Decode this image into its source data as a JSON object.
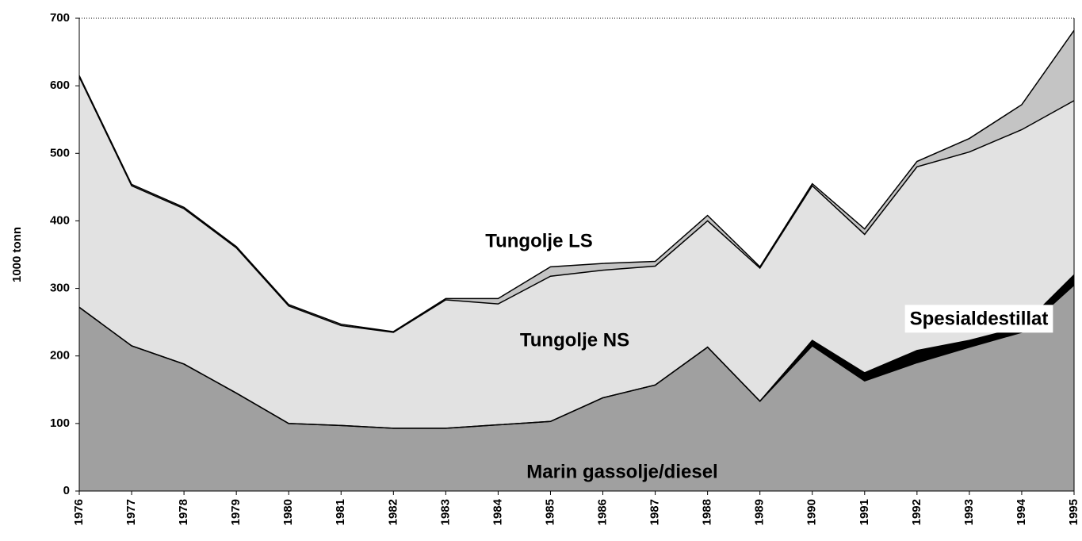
{
  "chart_data": {
    "type": "stacked-area",
    "y_label": "1000 tonn",
    "categories": [
      "1976",
      "1977",
      "1978",
      "1979",
      "1980",
      "1981",
      "1982",
      "1983",
      "1984",
      "1985",
      "1986",
      "1987",
      "1988",
      "1989",
      "1990",
      "1991",
      "1992",
      "1993",
      "1994",
      "1995"
    ],
    "series": [
      {
        "name": "Marin gassolje/diesel",
        "color": "#a0a0a0",
        "values": [
          272,
          215,
          188,
          145,
          100,
          97,
          93,
          93,
          98,
          103,
          138,
          157,
          213,
          133,
          215,
          163,
          190,
          213,
          235,
          305
        ]
      },
      {
        "name": "Spesialdestillat",
        "color": "#000000",
        "values": [
          0,
          0,
          0,
          0,
          0,
          0,
          0,
          0,
          0,
          0,
          0,
          0,
          0,
          0,
          8,
          12,
          18,
          10,
          8,
          15
        ]
      },
      {
        "name": "Tungolje NS",
        "color": "#e2e2e2",
        "values": [
          341,
          237,
          230,
          215,
          174,
          148,
          142,
          190,
          179,
          215,
          189,
          176,
          187,
          197,
          229,
          205,
          272,
          279,
          292,
          258
        ]
      },
      {
        "name": "Tungolje LS",
        "color": "#c4c4c4",
        "values": [
          2,
          2,
          2,
          2,
          2,
          2,
          1,
          2,
          8,
          14,
          10,
          7,
          8,
          2,
          3,
          8,
          8,
          20,
          37,
          104
        ]
      }
    ],
    "ylim": [
      0,
      700
    ],
    "yticks": [
      0,
      100,
      200,
      300,
      400,
      500,
      600,
      700
    ]
  }
}
